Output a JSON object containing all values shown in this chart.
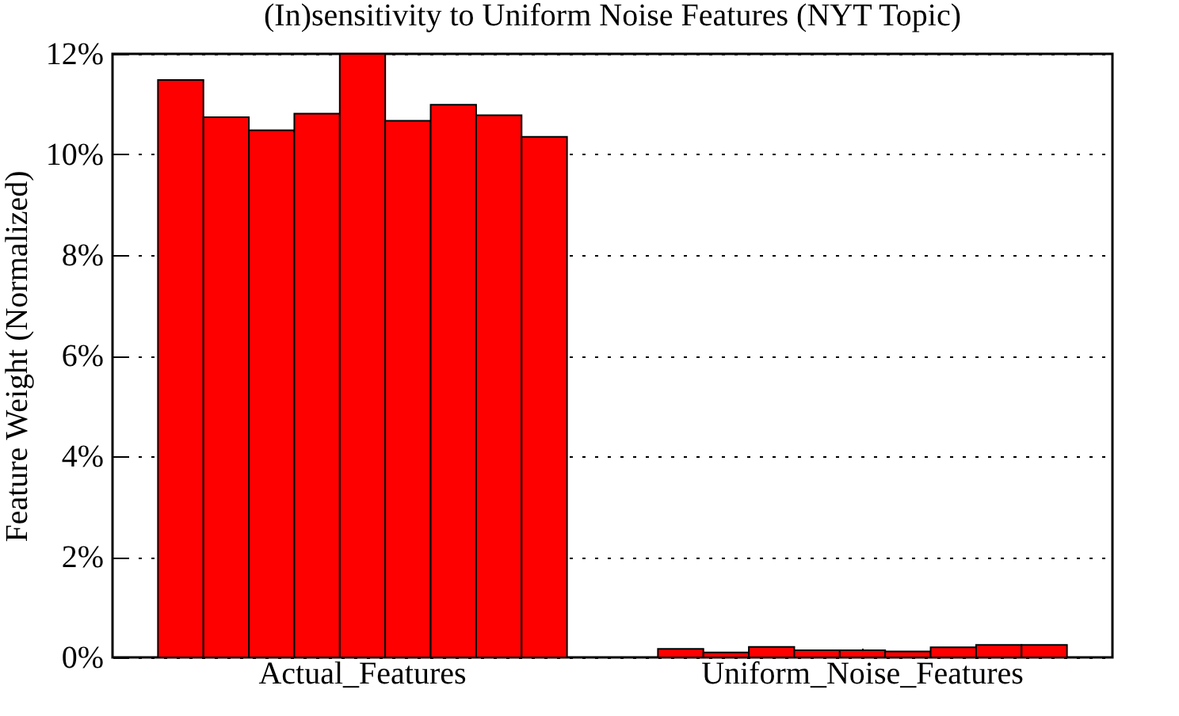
{
  "chart_data": {
    "type": "bar",
    "title": "(In)sensitivity to Uniform Noise Features (NYT Topic)",
    "ylabel": "Feature Weight (Normalized)",
    "categories": [
      "Actual_Features",
      "Uniform_Noise_Features"
    ],
    "series": [
      {
        "color": "#ff0000",
        "values": [
          11.48,
          0.17
        ]
      },
      {
        "color": "#ff0000",
        "values": [
          10.74,
          0.1
        ]
      },
      {
        "color": "#ff0000",
        "values": [
          10.48,
          0.21
        ]
      },
      {
        "color": "#ff0000",
        "values": [
          10.81,
          0.14
        ]
      },
      {
        "color": "#ff0000",
        "values": [
          12.0,
          0.14
        ]
      },
      {
        "color": "#ff0000",
        "values": [
          10.67,
          0.12
        ]
      },
      {
        "color": "#ff0000",
        "values": [
          10.99,
          0.2
        ]
      },
      {
        "color": "#ff0000",
        "values": [
          10.78,
          0.25
        ]
      },
      {
        "color": "#ff0000",
        "values": [
          10.35,
          0.25
        ]
      }
    ],
    "ylim": [
      0,
      12
    ],
    "yticks": [
      {
        "value": 0,
        "label": "0%"
      },
      {
        "value": 2,
        "label": "2%"
      },
      {
        "value": 4,
        "label": "4%"
      },
      {
        "value": 6,
        "label": "6%"
      },
      {
        "value": 8,
        "label": "8%"
      },
      {
        "value": 10,
        "label": "10%"
      },
      {
        "value": 12,
        "label": "12%"
      }
    ],
    "grid": "y"
  }
}
